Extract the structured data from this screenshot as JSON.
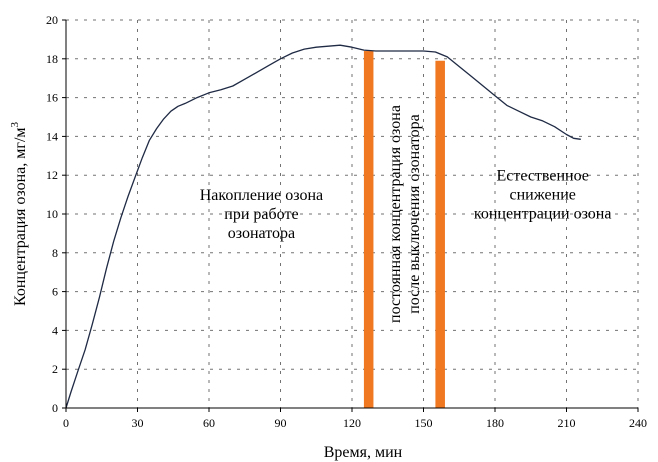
{
  "chart_data": {
    "type": "line",
    "xlabel": "Время, мин",
    "ylabel_main": "Концентрация озона, мг/м",
    "ylabel_sup": "3",
    "xlim": [
      0,
      240
    ],
    "ylim": [
      0,
      20
    ],
    "xticks": [
      0,
      30,
      60,
      90,
      120,
      150,
      180,
      210,
      240
    ],
    "yticks": [
      0,
      2,
      4,
      6,
      8,
      10,
      12,
      14,
      16,
      18,
      20
    ],
    "grid": true,
    "series": [
      {
        "color": "#1f2a44",
        "x": [
          0,
          2,
          5,
          8,
          11,
          14,
          17,
          20,
          23,
          26,
          29,
          32,
          35,
          38,
          41,
          44,
          47,
          50,
          55,
          60,
          65,
          70,
          75,
          80,
          85,
          90,
          95,
          100,
          105,
          110,
          115,
          120,
          125,
          130,
          135,
          140,
          145,
          150,
          155,
          160,
          165,
          170,
          175,
          180,
          185,
          190,
          195,
          200,
          205,
          210,
          213,
          216
        ],
        "y": [
          0,
          0.8,
          1.9,
          3.0,
          4.3,
          5.7,
          7.2,
          8.6,
          9.8,
          10.9,
          11.9,
          12.9,
          13.8,
          14.4,
          14.9,
          15.3,
          15.55,
          15.7,
          16.0,
          16.25,
          16.4,
          16.6,
          16.95,
          17.3,
          17.65,
          18.0,
          18.3,
          18.5,
          18.6,
          18.65,
          18.7,
          18.6,
          18.45,
          18.4,
          18.4,
          18.4,
          18.4,
          18.4,
          18.35,
          18.1,
          17.6,
          17.1,
          16.6,
          16.1,
          15.6,
          15.3,
          15.0,
          14.8,
          14.5,
          14.1,
          13.9,
          13.85
        ]
      }
    ],
    "bars": [
      {
        "x_start": 125,
        "x_end": 129,
        "y_top": 18.4,
        "color": "#f07820"
      },
      {
        "x_start": 155,
        "x_end": 159,
        "y_top": 17.9,
        "color": "#f07820"
      }
    ],
    "annotations": [
      {
        "lines": [
          "Накопление озона",
          "при работе",
          "озонатора"
        ],
        "x": 82,
        "y": 10,
        "rotate": 0
      },
      {
        "lines": [
          "постоянная концентрация озона",
          "после выключения озонатора"
        ],
        "x": 142,
        "y": 10,
        "rotate": -90
      },
      {
        "lines": [
          "Естественное",
          "снижение",
          "концентрации озона"
        ],
        "x": 200,
        "y": 11,
        "rotate": 0
      }
    ]
  }
}
